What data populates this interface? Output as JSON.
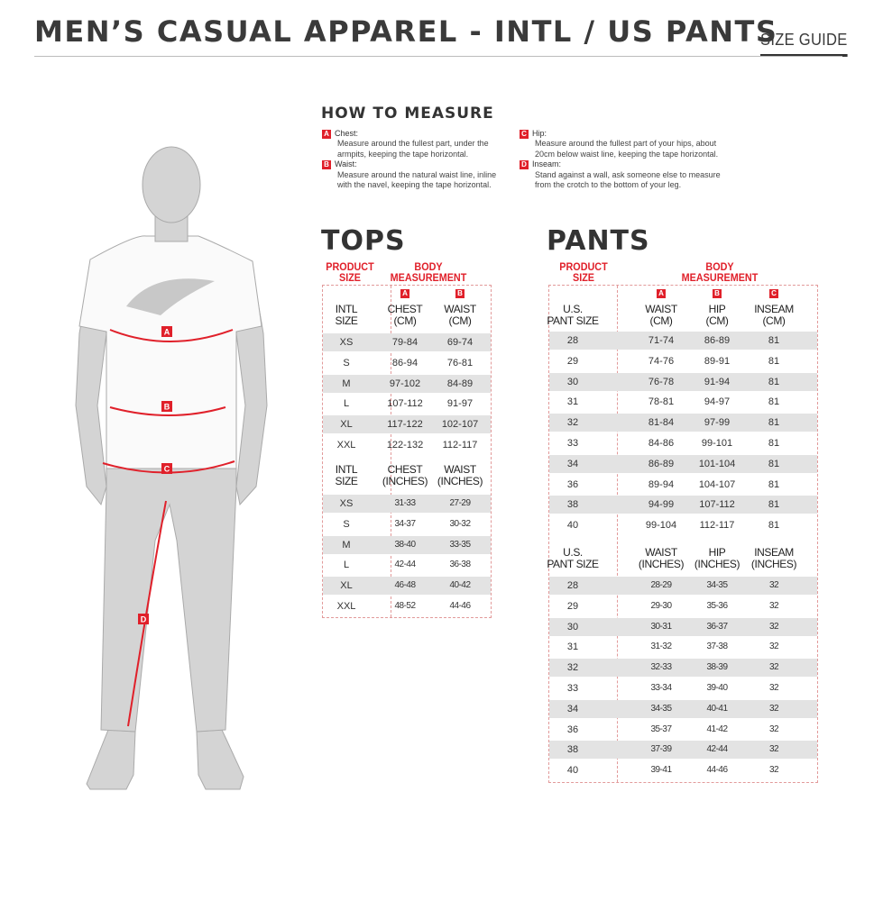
{
  "header": {
    "title": "MEN’S CASUAL APPAREL - INTL / US PANTS",
    "size_guide": "SIZE GUIDE"
  },
  "how_to_measure": {
    "title": "HOW TO MEASURE",
    "items": [
      {
        "badge": "A",
        "label": "Chest:",
        "desc": "Measure around the fullest part, under the armpits, keeping the tape horizontal."
      },
      {
        "badge": "B",
        "label": "Waist:",
        "desc": "Measure around the natural waist line, inline with the navel, keeping the tape horizontal."
      },
      {
        "badge": "C",
        "label": "Hip:",
        "desc": "Measure around the fullest part of your hips, about 20cm below waist line, keeping the tape horizontal."
      },
      {
        "badge": "D",
        "label": "Inseam:",
        "desc": "Stand against a wall, ask someone else to measure from the crotch to the bottom of your leg."
      }
    ]
  },
  "figure": {
    "markers": [
      "A",
      "B",
      "C",
      "D"
    ]
  },
  "tops": {
    "title": "TOPS",
    "product_size": "PRODUCT SIZE",
    "body_measurement": "BODY MEASUREMENT",
    "cm": {
      "headers": [
        "INTL SIZE",
        "CHEST (CM)",
        "WAIST (CM)"
      ],
      "badges": [
        "A",
        "B"
      ],
      "rows": [
        [
          "XS",
          "79-84",
          "69-74"
        ],
        [
          "S",
          "86-94",
          "76-81"
        ],
        [
          "M",
          "97-102",
          "84-89"
        ],
        [
          "L",
          "107-112",
          "91-97"
        ],
        [
          "XL",
          "117-122",
          "102-107"
        ],
        [
          "XXL",
          "122-132",
          "112-117"
        ]
      ]
    },
    "inches": {
      "headers": [
        "INTL SIZE",
        "CHEST (INCHES)",
        "WAIST (INCHES)"
      ],
      "rows": [
        [
          "XS",
          "31-33",
          "27-29"
        ],
        [
          "S",
          "34-37",
          "30-32"
        ],
        [
          "M",
          "38-40",
          "33-35"
        ],
        [
          "L",
          "42-44",
          "36-38"
        ],
        [
          "XL",
          "46-48",
          "40-42"
        ],
        [
          "XXL",
          "48-52",
          "44-46"
        ]
      ]
    }
  },
  "pants": {
    "title": "PANTS",
    "product_size": "PRODUCT SIZE",
    "body_measurement": "BODY MEASUREMENT",
    "cm": {
      "headers": [
        "U.S. PANT SIZE",
        "WAIST (CM)",
        "HIP (CM)",
        "INSEAM (CM)"
      ],
      "badges": [
        "A",
        "B",
        "C"
      ],
      "rows": [
        [
          "28",
          "71-74",
          "86-89",
          "81"
        ],
        [
          "29",
          "74-76",
          "89-91",
          "81"
        ],
        [
          "30",
          "76-78",
          "91-94",
          "81"
        ],
        [
          "31",
          "78-81",
          "94-97",
          "81"
        ],
        [
          "32",
          "81-84",
          "97-99",
          "81"
        ],
        [
          "33",
          "84-86",
          "99-101",
          "81"
        ],
        [
          "34",
          "86-89",
          "101-104",
          "81"
        ],
        [
          "36",
          "89-94",
          "104-107",
          "81"
        ],
        [
          "38",
          "94-99",
          "107-112",
          "81"
        ],
        [
          "40",
          "99-104",
          "112-117",
          "81"
        ]
      ]
    },
    "inches": {
      "headers": [
        "U.S. PANT SIZE",
        "WAIST (INCHES)",
        "HIP (INCHES)",
        "INSEAM (INCHES)"
      ],
      "rows": [
        [
          "28",
          "28-29",
          "34-35",
          "32"
        ],
        [
          "29",
          "29-30",
          "35-36",
          "32"
        ],
        [
          "30",
          "30-31",
          "36-37",
          "32"
        ],
        [
          "31",
          "31-32",
          "37-38",
          "32"
        ],
        [
          "32",
          "32-33",
          "38-39",
          "32"
        ],
        [
          "33",
          "33-34",
          "39-40",
          "32"
        ],
        [
          "34",
          "34-35",
          "40-41",
          "32"
        ],
        [
          "36",
          "35-37",
          "41-42",
          "32"
        ],
        [
          "38",
          "37-39",
          "42-44",
          "32"
        ],
        [
          "40",
          "39-41",
          "44-46",
          "32"
        ]
      ]
    }
  },
  "colors": {
    "accent": "#e0202a",
    "stripe": "#e3e3e3",
    "text": "#333333"
  }
}
